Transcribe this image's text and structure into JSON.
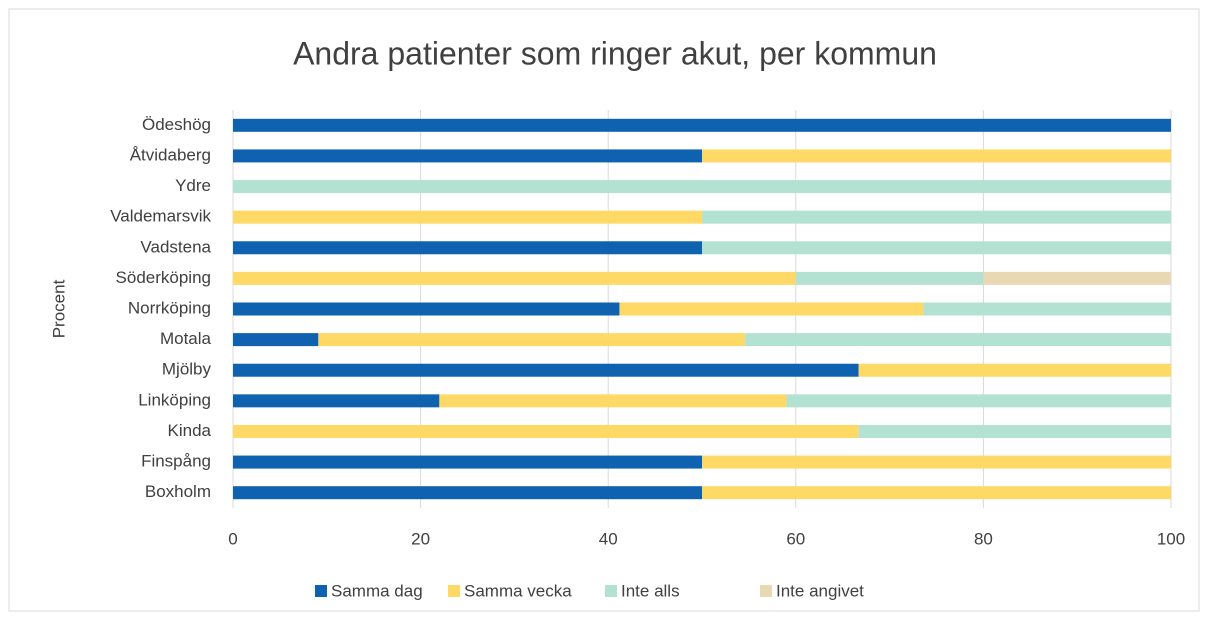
{
  "chart_data": {
    "type": "bar",
    "orientation": "horizontal",
    "stacked": true,
    "title": "Andra patienter som ringer akut, per kommun",
    "y_label": "Procent",
    "categories": [
      "Ödeshög",
      "Åtvidaberg",
      "Ydre",
      "Valdemarsvik",
      "Vadstena",
      "Söderköping",
      "Norrköping",
      "Motala",
      "Mjölby",
      "Linköping",
      "Kinda",
      "Finspång",
      "Boxholm"
    ],
    "series": [
      {
        "name": "Samma dag",
        "color": "#0f62b0",
        "values": [
          100,
          50,
          0,
          0,
          50,
          0,
          41.2,
          9.1,
          66.7,
          22,
          0,
          50,
          50
        ]
      },
      {
        "name": "Samma vecka",
        "color": "#ffd966",
        "values": [
          0,
          50,
          0,
          50,
          0,
          60,
          32.4,
          45.5,
          33.3,
          37,
          66.7,
          50,
          50
        ]
      },
      {
        "name": "Inte alls",
        "color": "#b3e2d3",
        "values": [
          0,
          0,
          100,
          50,
          50,
          20,
          26.4,
          45.4,
          0,
          41,
          33.3,
          0,
          0
        ]
      },
      {
        "name": "Inte angivet",
        "color": "#e8d8b4",
        "values": [
          0,
          0,
          0,
          0,
          0,
          20,
          0,
          0,
          0,
          0,
          0,
          0,
          0
        ]
      }
    ],
    "xlim": [
      0,
      100
    ],
    "xticks": [
      0,
      20,
      40,
      60,
      80,
      100
    ],
    "grid": true,
    "legend": "bottom"
  }
}
